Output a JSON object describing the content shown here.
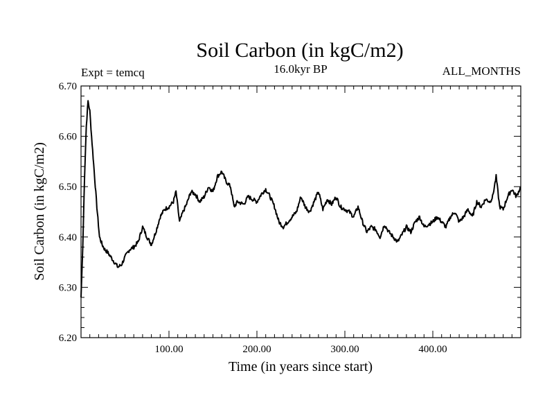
{
  "chart_data": {
    "type": "line",
    "title": "Soil Carbon (in kgC/m2)",
    "subtitle_left": "Expt = temcq",
    "subtitle_center": "16.0kyr BP",
    "subtitle_right": "ALL_MONTHS",
    "xlabel": "Time (in years since start)",
    "ylabel": "Soil Carbon (in kgC/m2)",
    "xlim": [
      0,
      500
    ],
    "ylim": [
      6.2,
      6.7
    ],
    "x_ticks": [
      100,
      200,
      300,
      400
    ],
    "x_tick_labels": [
      "100.00",
      "200.00",
      "300.00",
      "400.00"
    ],
    "y_ticks": [
      6.2,
      6.3,
      6.4,
      6.5,
      6.6,
      6.7
    ],
    "y_tick_labels": [
      "6.20",
      "6.30",
      "6.40",
      "6.50",
      "6.60",
      "6.70"
    ],
    "series": [
      {
        "name": "Soil Carbon",
        "x": [
          0,
          2,
          4,
          6,
          8,
          10,
          12,
          15,
          18,
          21,
          24,
          27,
          30,
          34,
          38,
          42,
          46,
          50,
          55,
          60,
          65,
          70,
          75,
          80,
          85,
          90,
          95,
          100,
          105,
          108,
          112,
          116,
          120,
          125,
          130,
          135,
          140,
          145,
          150,
          155,
          160,
          165,
          170,
          174,
          178,
          185,
          190,
          195,
          200,
          205,
          210,
          215,
          220,
          225,
          230,
          235,
          240,
          245,
          250,
          255,
          260,
          265,
          270,
          275,
          280,
          285,
          290,
          295,
          300,
          305,
          310,
          315,
          320,
          325,
          330,
          335,
          340,
          345,
          350,
          355,
          360,
          365,
          370,
          375,
          380,
          385,
          390,
          395,
          400,
          405,
          410,
          415,
          420,
          425,
          430,
          435,
          440,
          445,
          450,
          455,
          460,
          465,
          468,
          472,
          476,
          480,
          485,
          490,
          495,
          500
        ],
        "y": [
          6.28,
          6.38,
          6.52,
          6.62,
          6.67,
          6.65,
          6.6,
          6.53,
          6.46,
          6.4,
          6.385,
          6.375,
          6.37,
          6.36,
          6.35,
          6.34,
          6.345,
          6.36,
          6.375,
          6.38,
          6.39,
          6.42,
          6.4,
          6.385,
          6.41,
          6.44,
          6.455,
          6.46,
          6.47,
          6.49,
          6.43,
          6.45,
          6.465,
          6.49,
          6.485,
          6.47,
          6.48,
          6.5,
          6.49,
          6.52,
          6.53,
          6.51,
          6.5,
          6.46,
          6.47,
          6.465,
          6.48,
          6.475,
          6.47,
          6.485,
          6.495,
          6.48,
          6.46,
          6.43,
          6.42,
          6.43,
          6.44,
          6.45,
          6.48,
          6.46,
          6.45,
          6.47,
          6.49,
          6.455,
          6.475,
          6.465,
          6.48,
          6.46,
          6.455,
          6.45,
          6.44,
          6.46,
          6.43,
          6.41,
          6.42,
          6.415,
          6.4,
          6.425,
          6.41,
          6.4,
          6.39,
          6.405,
          6.42,
          6.41,
          6.43,
          6.44,
          6.42,
          6.425,
          6.43,
          6.44,
          6.43,
          6.42,
          6.44,
          6.45,
          6.43,
          6.44,
          6.455,
          6.44,
          6.47,
          6.46,
          6.475,
          6.47,
          6.48,
          6.52,
          6.46,
          6.455,
          6.48,
          6.495,
          6.48,
          6.5
        ]
      }
    ]
  }
}
